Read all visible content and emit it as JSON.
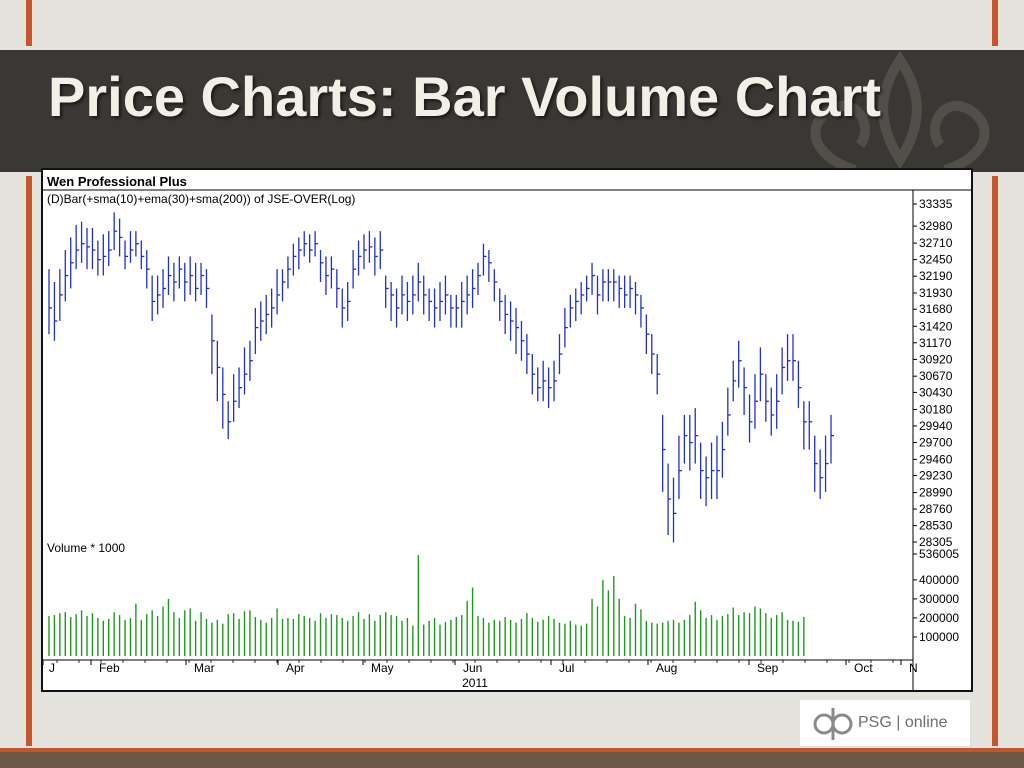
{
  "slide": {
    "title": "Price Charts: Bar Volume Chart",
    "logo_text": "PSG | online",
    "colors": {
      "title_bar": "#3a3835",
      "title_text": "#f2efe6",
      "accent": "#c8542a",
      "background": "#e4e2dd"
    }
  },
  "chart_data": [
    {
      "type": "bar",
      "subtype": "ohlc-price-bars",
      "title": "Wen Professional Plus",
      "subtitle": "(D)Bar(+sma(10)+ema(30)+sma(200)) of JSE-OVER(Log)",
      "color": "#1f2fd0",
      "y_scale": "log",
      "ylim": [
        28305,
        33335
      ],
      "y_ticks": [
        33335,
        32980,
        32710,
        32450,
        32190,
        31930,
        31680,
        31420,
        31170,
        30920,
        30670,
        30430,
        30180,
        29940,
        29700,
        29460,
        29230,
        28990,
        28760,
        28530,
        28305
      ],
      "x_axis": {
        "labels": [
          "J",
          "Feb",
          "Mar",
          "Apr",
          "May",
          "Jun",
          "Jul",
          "Aug",
          "Sep",
          "Oct",
          "N"
        ],
        "year": "2011"
      },
      "series": [
        {
          "values": [
            [
              31700,
              31300,
              32300
            ],
            [
              31500,
              31200,
              32100
            ],
            [
              31900,
              31500,
              32300
            ],
            [
              32200,
              31800,
              32600
            ],
            [
              32400,
              32000,
              32800
            ],
            [
              32600,
              32300,
              33000
            ],
            [
              32700,
              32400,
              33050
            ],
            [
              32650,
              32300,
              32950
            ],
            [
              32600,
              32300,
              32950
            ],
            [
              32450,
              32200,
              32750
            ],
            [
              32500,
              32200,
              32850
            ],
            [
              32600,
              32350,
              32900
            ],
            [
              32900,
              32600,
              33200
            ],
            [
              32800,
              32500,
              33100
            ],
            [
              32500,
              32300,
              32750
            ],
            [
              32600,
              32400,
              32900
            ],
            [
              32700,
              32500,
              32900
            ],
            [
              32500,
              32300,
              32750
            ],
            [
              32300,
              32000,
              32600
            ],
            [
              31800,
              31500,
              32200
            ],
            [
              31900,
              31600,
              32200
            ],
            [
              32000,
              31700,
              32300
            ],
            [
              32200,
              31900,
              32500
            ],
            [
              32100,
              31800,
              32400
            ],
            [
              32300,
              32000,
              32500
            ],
            [
              32100,
              31800,
              32400
            ],
            [
              32200,
              31900,
              32500
            ],
            [
              32000,
              31800,
              32400
            ],
            [
              32200,
              31900,
              32400
            ],
            [
              32000,
              31700,
              32300
            ],
            [
              31200,
              30700,
              31600
            ],
            [
              30800,
              30300,
              31200
            ],
            [
              30400,
              29900,
              30800
            ],
            [
              30000,
              29750,
              30300
            ],
            [
              30300,
              30000,
              30700
            ],
            [
              30500,
              30200,
              30800
            ],
            [
              30700,
              30400,
              31100
            ],
            [
              30900,
              30600,
              31200
            ],
            [
              31400,
              31000,
              31700
            ],
            [
              31500,
              31200,
              31800
            ],
            [
              31600,
              31300,
              31900
            ],
            [
              31700,
              31400,
              32000
            ],
            [
              31900,
              31600,
              32300
            ],
            [
              32100,
              31800,
              32300
            ],
            [
              32300,
              32000,
              32500
            ],
            [
              32500,
              32200,
              32700
            ],
            [
              32600,
              32300,
              32800
            ],
            [
              32700,
              32500,
              32900
            ],
            [
              32600,
              32400,
              32850
            ],
            [
              32700,
              32500,
              32900
            ],
            [
              32400,
              32100,
              32600
            ],
            [
              32200,
              31900,
              32500
            ],
            [
              32300,
              32000,
              32500
            ],
            [
              32000,
              31700,
              32300
            ],
            [
              31700,
              31400,
              32000
            ],
            [
              31800,
              31500,
              32100
            ],
            [
              32300,
              32000,
              32600
            ],
            [
              32500,
              32200,
              32750
            ],
            [
              32600,
              32300,
              32850
            ],
            [
              32650,
              32400,
              32900
            ],
            [
              32500,
              32200,
              32800
            ],
            [
              32600,
              32300,
              32900
            ],
            [
              32000,
              31700,
              32200
            ],
            [
              31900,
              31500,
              32100
            ],
            [
              31700,
              31400,
              32000
            ],
            [
              31900,
              31600,
              32200
            ],
            [
              31800,
              31500,
              32100
            ],
            [
              31900,
              31600,
              32200
            ],
            [
              32100,
              31800,
              32400
            ],
            [
              31900,
              31600,
              32200
            ],
            [
              31800,
              31500,
              32000
            ],
            [
              31700,
              31400,
              32000
            ],
            [
              31800,
              31500,
              32100
            ],
            [
              31900,
              31600,
              32200
            ],
            [
              31700,
              31400,
              31900
            ],
            [
              31700,
              31400,
              31900
            ],
            [
              31800,
              31400,
              32100
            ],
            [
              31900,
              31600,
              32200
            ],
            [
              32000,
              31700,
              32300
            ],
            [
              32200,
              31900,
              32400
            ],
            [
              32500,
              32200,
              32700
            ],
            [
              32400,
              32100,
              32600
            ],
            [
              32100,
              31800,
              32300
            ],
            [
              31800,
              31500,
              32000
            ],
            [
              31600,
              31300,
              31900
            ],
            [
              31500,
              31200,
              31800
            ],
            [
              31400,
              31000,
              31700
            ],
            [
              31200,
              30900,
              31500
            ],
            [
              31000,
              30700,
              31300
            ],
            [
              30700,
              30400,
              31000
            ],
            [
              30500,
              30300,
              30800
            ],
            [
              30600,
              30300,
              30900
            ],
            [
              30500,
              30200,
              30800
            ],
            [
              30600,
              30300,
              30900
            ],
            [
              31000,
              30700,
              31300
            ],
            [
              31400,
              31100,
              31700
            ],
            [
              31700,
              31400,
              31900
            ],
            [
              31800,
              31500,
              32000
            ],
            [
              31900,
              31600,
              32100
            ],
            [
              32000,
              31800,
              32200
            ],
            [
              32200,
              31900,
              32400
            ],
            [
              31900,
              31600,
              32200
            ],
            [
              32100,
              31800,
              32300
            ],
            [
              32100,
              31800,
              32300
            ],
            [
              32100,
              31800,
              32300
            ],
            [
              32000,
              31700,
              32200
            ],
            [
              31900,
              31700,
              32200
            ],
            [
              32000,
              31700,
              32200
            ],
            [
              31900,
              31600,
              32100
            ],
            [
              31700,
              31400,
              31900
            ],
            [
              31300,
              31000,
              31600
            ],
            [
              31000,
              30700,
              31300
            ],
            [
              30700,
              30400,
              31000
            ],
            [
              29600,
              29000,
              30100
            ],
            [
              28900,
              28400,
              29400
            ],
            [
              28700,
              28300,
              29200
            ],
            [
              29300,
              28900,
              29800
            ],
            [
              29800,
              29400,
              30100
            ],
            [
              29700,
              29300,
              30100
            ],
            [
              29800,
              29400,
              30200
            ],
            [
              29300,
              28900,
              29700
            ],
            [
              29200,
              28800,
              29500
            ],
            [
              29300,
              28900,
              29700
            ],
            [
              29300,
              28900,
              29800
            ],
            [
              29600,
              29200,
              30000
            ],
            [
              30100,
              29800,
              30500
            ],
            [
              30600,
              30300,
              30900
            ],
            [
              30900,
              30500,
              31200
            ],
            [
              30500,
              30100,
              30800
            ],
            [
              30000,
              29700,
              30400
            ],
            [
              30300,
              29900,
              30700
            ],
            [
              30700,
              30300,
              31100
            ],
            [
              30300,
              30000,
              30700
            ],
            [
              30100,
              29800,
              30500
            ],
            [
              30300,
              29900,
              30700
            ],
            [
              30800,
              30400,
              31100
            ],
            [
              30900,
              30600,
              31300
            ],
            [
              30900,
              30600,
              31300
            ],
            [
              30500,
              30200,
              30900
            ],
            [
              30000,
              29600,
              30300
            ],
            [
              30000,
              29600,
              30300
            ],
            [
              29400,
              29000,
              29800
            ],
            [
              29200,
              28900,
              29600
            ],
            [
              29400,
              29000,
              29800
            ],
            [
              29800,
              29400,
              30100
            ]
          ]
        }
      ]
    },
    {
      "type": "bar",
      "title": "Volume * 1000",
      "color": "#1d9a1d",
      "ylim": [
        0,
        536005
      ],
      "y_ticks": [
        536005,
        400000,
        300000,
        200000,
        100000
      ],
      "series": [
        {
          "values": [
            210000,
            215000,
            225000,
            230000,
            205000,
            220000,
            240000,
            210000,
            225000,
            200000,
            185000,
            195000,
            230000,
            215000,
            190000,
            200000,
            275000,
            190000,
            220000,
            240000,
            210000,
            260000,
            300000,
            230000,
            200000,
            240000,
            250000,
            185000,
            230000,
            195000,
            175000,
            190000,
            170000,
            220000,
            225000,
            195000,
            235000,
            240000,
            205000,
            190000,
            175000,
            200000,
            250000,
            195000,
            200000,
            195000,
            220000,
            210000,
            200000,
            185000,
            225000,
            200000,
            220000,
            215000,
            200000,
            185000,
            210000,
            230000,
            195000,
            220000,
            185000,
            215000,
            230000,
            215000,
            210000,
            185000,
            200000,
            160000,
            530000,
            165000,
            185000,
            200000,
            165000,
            180000,
            190000,
            205000,
            215000,
            290000,
            360000,
            210000,
            200000,
            175000,
            190000,
            185000,
            205000,
            190000,
            175000,
            195000,
            225000,
            200000,
            180000,
            190000,
            210000,
            195000,
            175000,
            170000,
            185000,
            165000,
            160000,
            170000,
            300000,
            260000,
            400000,
            345000,
            420000,
            300000,
            210000,
            200000,
            275000,
            245000,
            185000,
            175000,
            170000,
            175000,
            185000,
            190000,
            175000,
            190000,
            215000,
            285000,
            240000,
            200000,
            215000,
            190000,
            210000,
            220000,
            255000,
            215000,
            230000,
            225000,
            260000,
            250000,
            225000,
            200000,
            215000,
            230000,
            190000,
            185000,
            180000,
            205000
          ]
        }
      ]
    }
  ]
}
